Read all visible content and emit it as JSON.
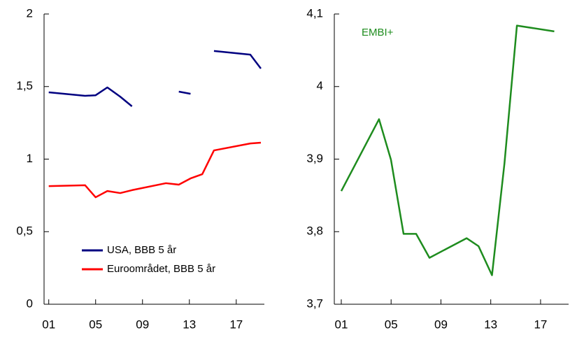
{
  "chart_data": [
    {
      "type": "line",
      "x": [
        1,
        4.1,
        5,
        6,
        7.1,
        8.1,
        11.0,
        12.1,
        13.1,
        14.1,
        15.1,
        18.2,
        19.1
      ],
      "series": [
        {
          "name": "USA, BBB 5 år",
          "color": "#000080",
          "values": [
            1.46,
            1.436,
            1.44,
            1.494,
            1.43,
            1.364,
            null,
            1.465,
            1.45,
            null,
            1.745,
            1.72,
            1.624
          ]
        },
        {
          "name": "Euroområdet,  BBB 5 år",
          "color": "#ff0000",
          "values": [
            0.814,
            0.82,
            0.737,
            0.78,
            0.766,
            0.786,
            0.834,
            0.824,
            0.867,
            0.896,
            1.06,
            1.108,
            1.113
          ]
        }
      ],
      "xlim": [
        0.6,
        19.4
      ],
      "xticks": [
        {
          "value": 1,
          "label": "01"
        },
        {
          "value": 5,
          "label": "05"
        },
        {
          "value": 9,
          "label": "09"
        },
        {
          "value": 13,
          "label": "13"
        },
        {
          "value": 17,
          "label": "17"
        }
      ],
      "ylim": [
        0,
        2
      ],
      "yticks": [
        0,
        {
          "value": 0.5,
          "label": "0,5"
        },
        1,
        {
          "value": 1.5,
          "label": "1,5"
        },
        2
      ],
      "legend": "bottom"
    },
    {
      "type": "line",
      "x": [
        1,
        4.03,
        4.99,
        6.0,
        7.01,
        8.08,
        11.06,
        12.02,
        13.1,
        14.1,
        15.1,
        18.1
      ],
      "series": [
        {
          "name": "EMBI+",
          "color": "#1e8c1e",
          "values": [
            3.856,
            3.955,
            3.899,
            3.797,
            3.797,
            3.764,
            3.791,
            3.78,
            3.74,
            3.894,
            4.084,
            4.076
          ]
        }
      ],
      "xlim": [
        0.44,
        19.25
      ],
      "xticks": [
        {
          "value": 1,
          "label": "01"
        },
        {
          "value": 5,
          "label": "05"
        },
        {
          "value": 9,
          "label": "09"
        },
        {
          "value": 13,
          "label": "13"
        },
        {
          "value": 17,
          "label": "17"
        }
      ],
      "ylim": [
        3.7,
        4.1
      ],
      "yticks": [
        {
          "value": 3.7,
          "label": "3,7"
        },
        {
          "value": 3.8,
          "label": "3,8"
        },
        {
          "value": 3.9,
          "label": "3,9"
        },
        4,
        {
          "value": 4.1,
          "label": "4,1"
        }
      ],
      "legend": "top-left"
    }
  ]
}
